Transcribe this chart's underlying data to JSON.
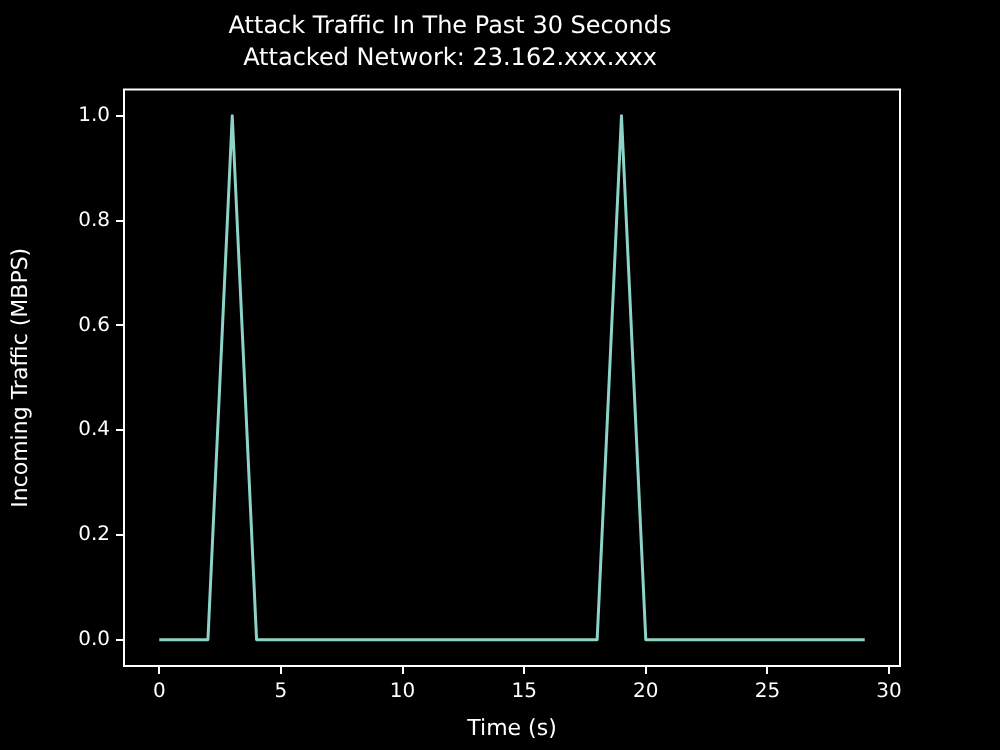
{
  "chart_data": {
    "type": "line",
    "title": "Attack Traffic In The Past 30 Seconds",
    "subtitle": "Attacked Network: 23.162.xxx.xxx",
    "xlabel": "Time (s)",
    "ylabel": "Incoming Traffic (MBPS)",
    "x": [
      0,
      1,
      2,
      3,
      4,
      5,
      6,
      7,
      8,
      9,
      10,
      11,
      12,
      13,
      14,
      15,
      16,
      17,
      18,
      19,
      20,
      21,
      22,
      23,
      24,
      25,
      26,
      27,
      28,
      29
    ],
    "series": [
      {
        "color": "#8dd3c7",
        "values": [
          0,
          0,
          0,
          1,
          0,
          0,
          0,
          0,
          0,
          0,
          0,
          0,
          0,
          0,
          0,
          0,
          0,
          0,
          0,
          1,
          0,
          0,
          0,
          0,
          0,
          0,
          0,
          0,
          0,
          0
        ]
      }
    ],
    "xlim": [
      -1.45,
      30.45
    ],
    "xticks": [
      0,
      5,
      10,
      15,
      20,
      25,
      30
    ],
    "ylim": [
      -0.05,
      1.05
    ],
    "yticks": [
      {
        "value": 0,
        "label": "0.0"
      },
      0.2,
      0.4,
      0.6,
      0.8,
      {
        "value": 1,
        "label": "1.0"
      }
    ],
    "grid": false,
    "legend": false,
    "marker": "none",
    "line_style": "solid"
  }
}
